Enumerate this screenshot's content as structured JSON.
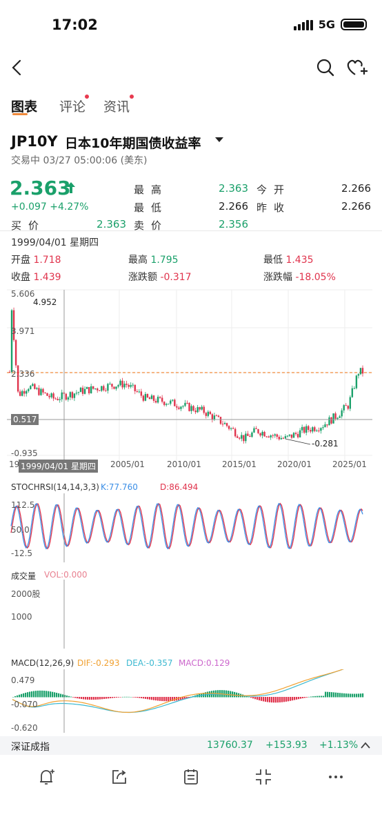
{
  "status_bar": {
    "time": "17:02",
    "network": "5G"
  },
  "tabs": [
    {
      "label": "图表",
      "active": true
    },
    {
      "label": "评论",
      "badge": true
    },
    {
      "label": "资讯",
      "badge": true
    }
  ],
  "instrument": {
    "symbol": "JP10Y",
    "name": "日本10年期国债收益率",
    "trade_status": "交易中 03/27 05:00:06 (美东)",
    "last": "2.363",
    "change": "+0.097 +4.27%"
  },
  "quote": {
    "high_label": "最高",
    "high": "2.363",
    "open_label": "今开",
    "open": "2.266",
    "low_label": "最低",
    "low": "2.266",
    "prev_close_label": "昨收",
    "prev_close": "2.266",
    "bid_label": "买价",
    "bid": "2.363",
    "ask_label": "卖价",
    "ask": "2.356"
  },
  "crosshair": {
    "date": "1999/04/01 星期四",
    "open_label": "开盘",
    "open": "1.718",
    "high_label": "最高",
    "high": "1.795",
    "low_label": "最低",
    "low": "1.435",
    "close_label": "收盘",
    "close": "1.439",
    "chg_label": "涨跌额",
    "chg": "-0.317",
    "pct_label": "涨跌幅",
    "pct": "-18.05%",
    "x_tag": "1999/04/01 星期四",
    "y_tag": "0.517"
  },
  "colors": {
    "up": "#1aa06a",
    "down": "#e0334c",
    "k_line": "#3a8ee6",
    "d_line": "#e0334c",
    "dif": "#f0a030",
    "dea": "#3ab8d0",
    "macd": "#cc66cc",
    "ref": "#f08a3c"
  },
  "chart_data": {
    "type": "line",
    "series": [
      {
        "name": "JP10Y",
        "x": [
          "1998/10",
          "1999/04",
          "2000/01",
          "2002/01",
          "2004/01",
          "2006/01",
          "2007/06",
          "2009/01",
          "2010/06",
          "2012/01",
          "2013/06",
          "2015/01",
          "2016/07",
          "2017/06",
          "2019/08",
          "2021/01",
          "2022/06",
          "2023/06",
          "2024/06",
          "2025/03"
        ],
        "y": [
          4.952,
          1.439,
          1.8,
          1.3,
          1.6,
          1.8,
          1.9,
          1.3,
          1.2,
          1.0,
          0.8,
          0.3,
          -0.281,
          0.05,
          -0.281,
          0.05,
          0.25,
          0.6,
          1.05,
          2.363
        ]
      }
    ],
    "y_ticks": [
      "5.606",
      "3.971",
      "2.336",
      "0.517",
      "-0.935"
    ],
    "x_ticks": [
      "199",
      "2005/01",
      "2010/01",
      "2015/01",
      "2020/01",
      "2025/01"
    ],
    "annotations": {
      "max": "4.952",
      "min": "-0.281"
    },
    "ylim": [
      -0.935,
      5.606
    ]
  },
  "stochrsi": {
    "label": "STOCHRSI(14,14,3,3)",
    "k": "K:77.760",
    "d": "D:86.494",
    "ticks": [
      "112.5",
      "50.0",
      "-12.5"
    ]
  },
  "volume": {
    "label": "成交量",
    "vol": "VOL:0.000",
    "ticks": [
      "2000股",
      "1000"
    ]
  },
  "macd": {
    "label": "MACD(12,26,9)",
    "dif": "DIF:-0.293",
    "dea": "DEA:-0.357",
    "macd": "MACD:0.129",
    "ticks": [
      "0.479",
      "-0.070",
      "-0.620"
    ]
  },
  "index_ticker": {
    "name": "深证成指",
    "value": "13760.37",
    "change": "+153.93",
    "pct": "+1.13%"
  },
  "bottom_bar": {
    "icons": [
      "alert-add-icon",
      "share-icon",
      "notes-icon",
      "fullscreen-exit-icon",
      "more-icon"
    ]
  }
}
